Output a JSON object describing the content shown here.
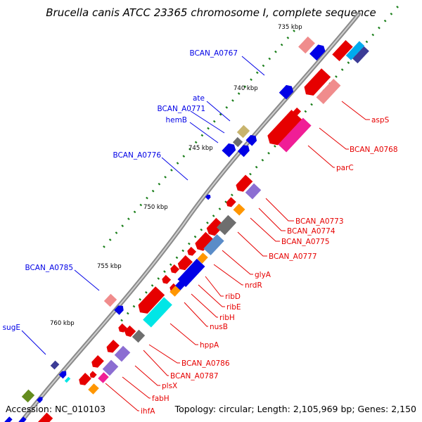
{
  "title": "Brucella canis ATCC 23365 chromosome I, complete sequence",
  "footer": {
    "accession": "Accession: NC_010103",
    "topology": "Topology: circular; Length: 2,105,969 bp; Genes: 2,150"
  },
  "colors": {
    "forward": "#0000e6",
    "reverse": "#e60000",
    "backbone": "#777777",
    "tick": "#1a7f1a",
    "pink": "#f08c8c",
    "magenta": "#f01e96",
    "cyan": "#00e6e6",
    "purple": "#8c6ed2",
    "orange": "#ff9600",
    "gray": "#6e6e6e",
    "khaki": "#c8b46e",
    "olive": "#648c1e",
    "steel": "#5a8cc8",
    "navy": "#3c3c96"
  },
  "scale_labels": [
    "735 kbp",
    "740 kbp",
    "745 kbp",
    "750 kbp",
    "755 kbp",
    "760 kbp"
  ],
  "forward_labels": [
    "BCAN_A0767",
    "ate",
    "BCAN_A0771",
    "hemB",
    "BCAN_A0776",
    "BCAN_A0785",
    "sugE"
  ],
  "reverse_labels": [
    "aspS",
    "BCAN_A0768",
    "parC",
    "BCAN_A0773",
    "BCAN_A0774",
    "BCAN_A0775",
    "BCAN_A0777",
    "glyA",
    "nrdR",
    "ribD",
    "ribE",
    "ribH",
    "nusB",
    "hppA",
    "BCAN_A0786",
    "BCAN_A0787",
    "plsX",
    "fabH",
    "ihfA"
  ]
}
